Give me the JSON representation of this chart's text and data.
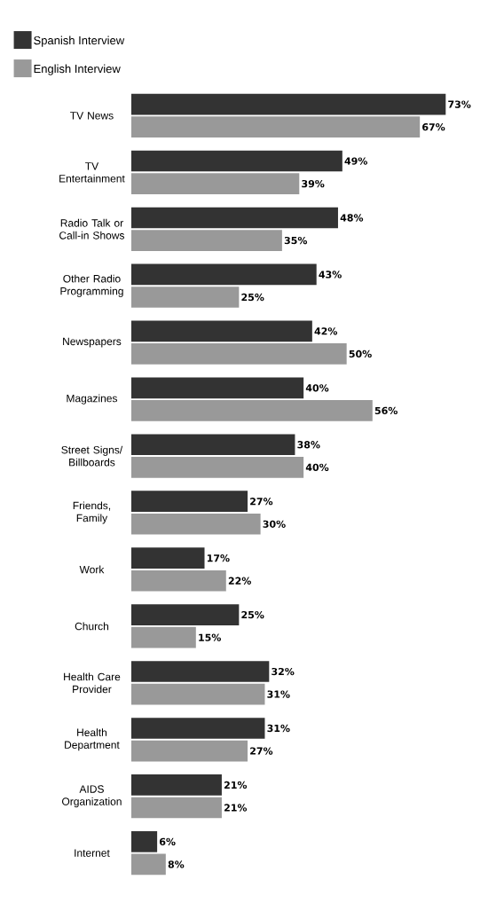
{
  "chart_data": {
    "type": "bar",
    "orientation": "horizontal",
    "categories": [
      "TV News",
      "TV Entertainment",
      "Radio Talk or Call-in Shows",
      "Other Radio Programming",
      "Newspapers",
      "Magazines",
      "Street Signs/ Billboards",
      "Friends, Family",
      "Work",
      "Church",
      "Health Care Provider",
      "Health Department",
      "AIDS Organization",
      "Internet"
    ],
    "series": [
      {
        "name": "Spanish Interview",
        "color": "#333333",
        "values": [
          73,
          49,
          48,
          43,
          42,
          40,
          38,
          27,
          17,
          25,
          32,
          31,
          21,
          6
        ],
        "value_labels": [
          "73%",
          "49%",
          "48%",
          "43%",
          "42%",
          "40%",
          "38%",
          "27%",
          "17%",
          "25%",
          "32%",
          "31%",
          "21%",
          "6%"
        ]
      },
      {
        "name": "English Interview",
        "color": "#999999",
        "values": [
          67,
          39,
          35,
          25,
          50,
          56,
          40,
          30,
          22,
          15,
          31,
          27,
          21,
          8
        ],
        "value_labels": [
          "67%",
          "39%",
          "35%",
          "25%",
          "50%",
          "56%",
          "40%",
          "30%",
          "22%",
          "15%",
          "31%",
          "27%",
          "21%",
          "8%"
        ]
      }
    ],
    "legend": "top left"
  }
}
